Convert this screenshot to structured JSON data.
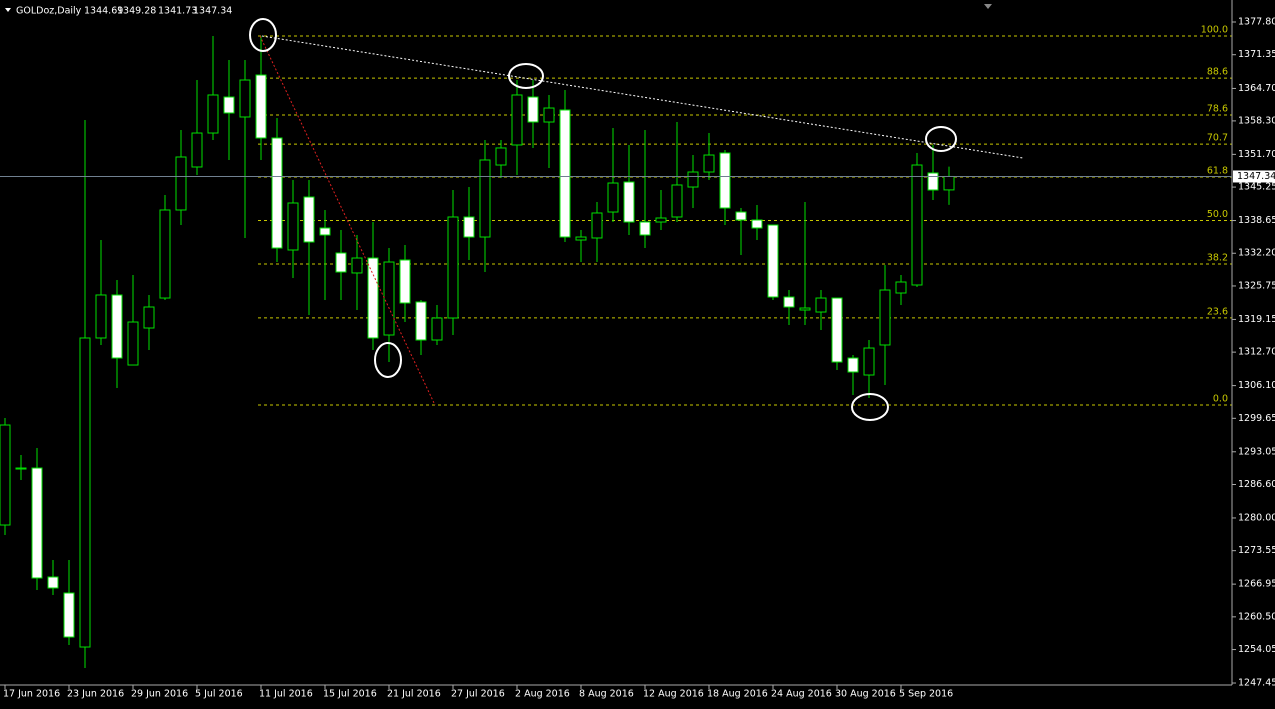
{
  "chart_data": {
    "type": "candlestick",
    "title": "GOLDoz,Daily",
    "categories": [
      "17 Jun 2016",
      null,
      null,
      null,
      "23 Jun 2016",
      null,
      null,
      null,
      "29 Jun 2016",
      null,
      null,
      null,
      "5 Jul 2016",
      null,
      null,
      null,
      "11 Jul 2016",
      null,
      null,
      null,
      "15 Jul 2016",
      null,
      null,
      null,
      "21 Jul 2016",
      null,
      null,
      null,
      "27 Jul 2016",
      null,
      null,
      null,
      "2 Aug 2016",
      null,
      null,
      null,
      "8 Aug 2016",
      null,
      null,
      null,
      "12 Aug 2016",
      null,
      null,
      null,
      "18 Aug 2016",
      null,
      null,
      null,
      "24 Aug 2016",
      null,
      null,
      null,
      "30 Aug 2016",
      null,
      null,
      null,
      "5 Sep 2016",
      null,
      null,
      null
    ],
    "series": {
      "open": [
        1278.61,
        1289.65,
        1289.85,
        1268.36,
        1265.2,
        1254.55,
        1315.49,
        1323.97,
        1310.16,
        1317.46,
        1323.37,
        1340.73,
        1349.21,
        1355.91,
        1363.01,
        1359.07,
        1367.35,
        1354.93,
        1332.84,
        1343.29,
        1337.18,
        1332.25,
        1328.31,
        1331.26,
        1316.08,
        1330.87,
        1322.59,
        1315.09,
        1319.43,
        1339.35,
        1335.4,
        1349.6,
        1353.55,
        1363.01,
        1358.08,
        1360.45,
        1334.81,
        1335.21,
        1340.33,
        1346.25,
        1338.36,
        1338.36,
        1339.35,
        1345.26,
        1348.22,
        1351.97,
        1340.33,
        1338.76,
        1337.77,
        1323.57,
        1321.01,
        1320.61,
        1323.37,
        1311.54,
        1308.19,
        1314.11,
        1324.36,
        1325.94,
        1348.03,
        1344.69
      ],
      "high": [
        1299.71,
        1292.41,
        1293.79,
        1271.71,
        1271.71,
        1358.48,
        1334.81,
        1326.92,
        1327.91,
        1323.97,
        1343.69,
        1356.5,
        1366.36,
        1375.04,
        1370.31,
        1370.31,
        1375.04,
        1358.87,
        1346.64,
        1346.64,
        1340.73,
        1336.78,
        1335.8,
        1338.36,
        1333.23,
        1333.83,
        1322.98,
        1321.99,
        1344.67,
        1345.26,
        1354.53,
        1354.53,
        1366.36,
        1366.36,
        1363.41,
        1364.39,
        1336.78,
        1342.31,
        1356.9,
        1353.55,
        1356.5,
        1344.67,
        1358.08,
        1351.57,
        1355.91,
        1352.56,
        1341.12,
        1341.71,
        1337.77,
        1324.95,
        1342.31,
        1324.95,
        1323.37,
        1312.13,
        1315.09,
        1329.88,
        1327.91,
        1351.97,
        1353.55,
        1349.28
      ],
      "low": [
        1276.64,
        1287.48,
        1265.79,
        1264.81,
        1254.95,
        1250.41,
        1314.11,
        1305.63,
        1310.16,
        1313.12,
        1322.98,
        1337.77,
        1347.63,
        1354.53,
        1350.59,
        1335.21,
        1350.59,
        1330.47,
        1327.32,
        1320.02,
        1322.98,
        1322.98,
        1321.01,
        1313.12,
        1310.75,
        1318.64,
        1312.13,
        1314.11,
        1316.08,
        1330.87,
        1328.5,
        1347.04,
        1347.63,
        1352.96,
        1349.01,
        1334.42,
        1330.47,
        1330.47,
        1338.36,
        1335.8,
        1333.23,
        1336.78,
        1338.36,
        1341.12,
        1346.64,
        1337.77,
        1331.85,
        1334.81,
        1322.98,
        1318.05,
        1318.05,
        1317.06,
        1309.18,
        1304.25,
        1303.65,
        1306.22,
        1321.99,
        1325.54,
        1342.7,
        1341.73
      ],
      "close": [
        1298.33,
        1289.85,
        1268.16,
        1266.19,
        1256.52,
        1315.49,
        1323.97,
        1311.54,
        1318.64,
        1321.6,
        1340.73,
        1351.18,
        1355.91,
        1363.41,
        1359.86,
        1366.36,
        1354.93,
        1333.23,
        1342.11,
        1334.42,
        1335.8,
        1328.5,
        1331.26,
        1315.49,
        1330.47,
        1322.39,
        1315.09,
        1319.43,
        1339.35,
        1335.4,
        1350.59,
        1352.96,
        1363.41,
        1358.08,
        1360.84,
        1335.4,
        1335.4,
        1340.14,
        1346.05,
        1338.36,
        1335.8,
        1339.15,
        1345.66,
        1348.22,
        1351.57,
        1341.12,
        1338.76,
        1337.18,
        1323.57,
        1321.6,
        1321.4,
        1323.37,
        1310.75,
        1308.78,
        1313.51,
        1324.95,
        1326.53,
        1349.6,
        1344.67,
        1347.34
      ]
    },
    "up_color": "#000000",
    "down_color": "#ffffff",
    "wick_color": "#00e000",
    "ylim": [
      1247.06,
      1382.14
    ],
    "yticks": [
      {
        "value": 1377.8,
        "label": "1377.80"
      },
      1371.35,
      {
        "value": 1364.7,
        "label": "1364.70"
      },
      {
        "value": 1358.3,
        "label": "1358.30"
      },
      {
        "value": 1351.7,
        "label": "1351.70"
      },
      1345.25,
      1338.65,
      {
        "value": 1332.2,
        "label": "1332.20"
      },
      1325.75,
      1319.15,
      {
        "value": 1312.7,
        "label": "1312.70"
      },
      {
        "value": 1306.1,
        "label": "1306.10"
      },
      1299.65,
      1293.05,
      {
        "value": 1286.6,
        "label": "1286.60"
      },
      {
        "value": 1280,
        "label": "1280.00"
      },
      1273.55,
      1266.95,
      {
        "value": 1260.5,
        "label": "1260.50"
      },
      1254.05,
      1247.45
    ],
    "fibonacci": {
      "high": 1375.04,
      "low": 1302.27,
      "color": "#c8c800",
      "levels": [
        {
          "value": 100,
          "label": "100.0"
        },
        88.6,
        78.6,
        70.7,
        61.8,
        {
          "value": 50,
          "label": "50.0"
        },
        38.2,
        23.6,
        {
          "value": 0,
          "label": "0.0"
        }
      ]
    }
  }
}
